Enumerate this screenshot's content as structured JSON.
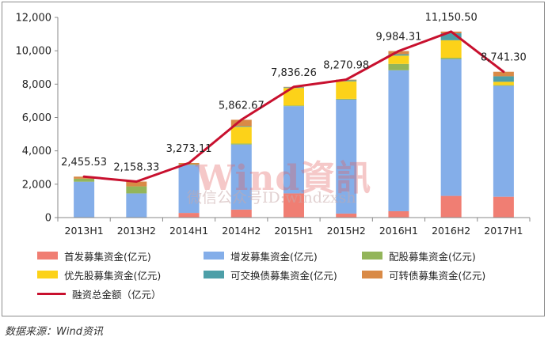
{
  "chart_data": {
    "type": "bar",
    "stacked": true,
    "categories": [
      "2013H1",
      "2013H2",
      "2014H1",
      "2014H2",
      "2015H1",
      "2015H2",
      "2016H1",
      "2016H2",
      "2017H1"
    ],
    "ylim": [
      0,
      12000
    ],
    "yticks": [
      0,
      2000,
      4000,
      6000,
      8000,
      10000,
      12000
    ],
    "ytick_labels": [
      "0",
      "2,000",
      "4,000",
      "6,000",
      "8,000",
      "10,000",
      "12,000"
    ],
    "grid": false,
    "legend_position": "bottom",
    "series": [
      {
        "name": "首发募集资金(亿元)",
        "color": "#f07e73",
        "values": [
          0,
          0,
          280,
          480,
          1450,
          240,
          380,
          1300,
          1250
        ]
      },
      {
        "name": "增发募集资金(亿元)",
        "color": "#84aee9",
        "values": [
          2150,
          1450,
          2880,
          3900,
          5230,
          6830,
          8450,
          8200,
          6650
        ]
      },
      {
        "name": "配股募集资金(亿元)",
        "color": "#93b55a",
        "values": [
          180,
          420,
          40,
          60,
          40,
          50,
          380,
          80,
          40
        ]
      },
      {
        "name": "优先股募集资金(亿元)",
        "color": "#fcd219",
        "values": [
          0,
          0,
          0,
          1000,
          1050,
          1050,
          500,
          1050,
          200
        ]
      },
      {
        "name": "可交换债募集资金(亿元)",
        "color": "#4d9fa8",
        "values": [
          0,
          0,
          0,
          40,
          40,
          60,
          80,
          420,
          330
        ]
      },
      {
        "name": "可转债募集资金(亿元)",
        "color": "#d98a46",
        "values": [
          125,
          288,
          73,
          383,
          26,
          41,
          194,
          101,
          271
        ]
      }
    ],
    "line_series": {
      "name": "融资总金额（亿元）",
      "color": "#c8102e",
      "values": [
        2455.53,
        2158.33,
        3273.11,
        5862.67,
        7836.26,
        8270.98,
        9984.31,
        11150.5,
        8741.3
      ],
      "labels": [
        "2,455.53",
        "2,158.33",
        "3,273.11",
        "5,862.67",
        "7,836.26",
        "8,270.98",
        "9,984.31",
        "11,150.50",
        "8,741.30"
      ]
    }
  },
  "watermark": {
    "text": "Wind資訊",
    "subtext": "微信公众号ID:windzxsh"
  },
  "source_note": "数据来源：Wind资讯"
}
